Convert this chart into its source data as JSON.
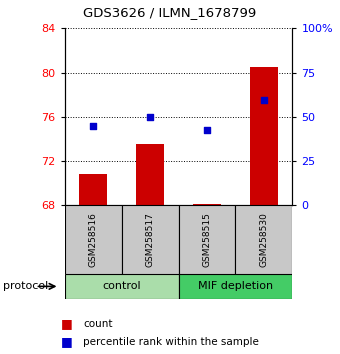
{
  "title": "GDS3626 / ILMN_1678799",
  "samples": [
    "GSM258516",
    "GSM258517",
    "GSM258515",
    "GSM258530"
  ],
  "count_values": [
    70.8,
    73.5,
    68.15,
    80.5
  ],
  "percentile_values": [
    75.2,
    76.0,
    74.8,
    77.5
  ],
  "baseline": 68,
  "ylim_left": [
    68,
    84
  ],
  "ylim_right": [
    0,
    100
  ],
  "yticks_left": [
    68,
    72,
    76,
    80,
    84
  ],
  "yticks_right": [
    0,
    25,
    50,
    75,
    100
  ],
  "ytick_labels_right": [
    "0",
    "25",
    "50",
    "75",
    "100%"
  ],
  "bar_color": "#cc0000",
  "dot_color": "#0000cc",
  "groups": [
    {
      "label": "control",
      "start": 0,
      "end": 2,
      "color": "#aaddaa"
    },
    {
      "label": "MIF depletion",
      "start": 2,
      "end": 4,
      "color": "#44cc66"
    }
  ],
  "legend_count_label": "count",
  "legend_pct_label": "percentile rank within the sample",
  "protocol_label": "protocol",
  "background_color": "#ffffff",
  "plot_bg_color": "#ffffff",
  "sample_row_color": "#c8c8c8"
}
